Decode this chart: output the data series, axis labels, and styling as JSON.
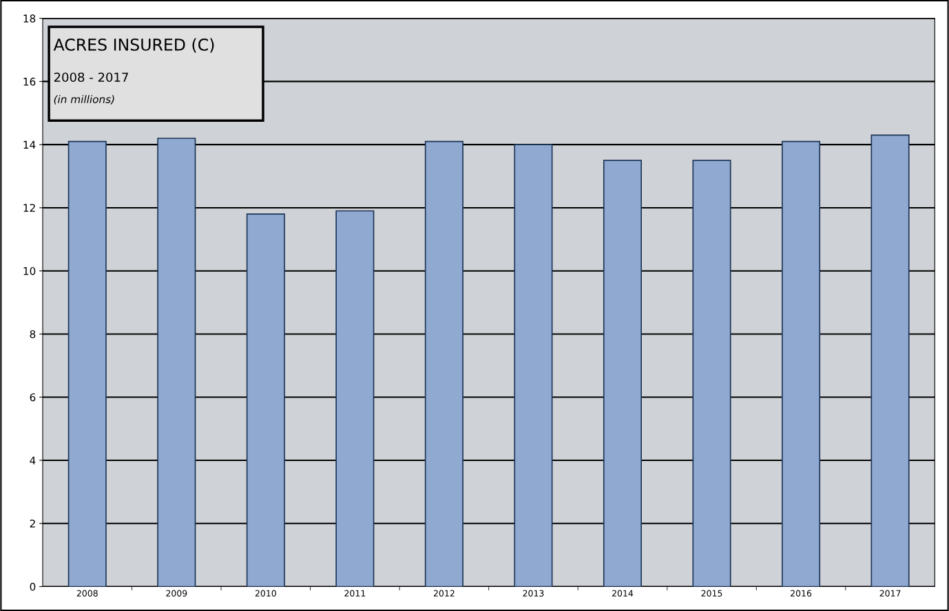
{
  "chart_data": {
    "type": "bar",
    "title": "ACRES INSURED (C)",
    "subtitle": "2008 - 2017",
    "annotations": [
      "(in millions)"
    ],
    "categories": [
      "2008",
      "2009",
      "2010",
      "2011",
      "2012",
      "2013",
      "2014",
      "2015",
      "2016",
      "2017"
    ],
    "values": [
      14.1,
      14.2,
      11.8,
      11.9,
      14.1,
      14.0,
      13.5,
      13.5,
      14.1,
      14.3
    ],
    "color": "#8fa9d0",
    "ylim": [
      0,
      18
    ],
    "yticks": [
      0,
      2,
      4,
      6,
      8,
      10,
      12,
      14,
      16,
      18
    ],
    "grid": "y",
    "legend": false
  }
}
